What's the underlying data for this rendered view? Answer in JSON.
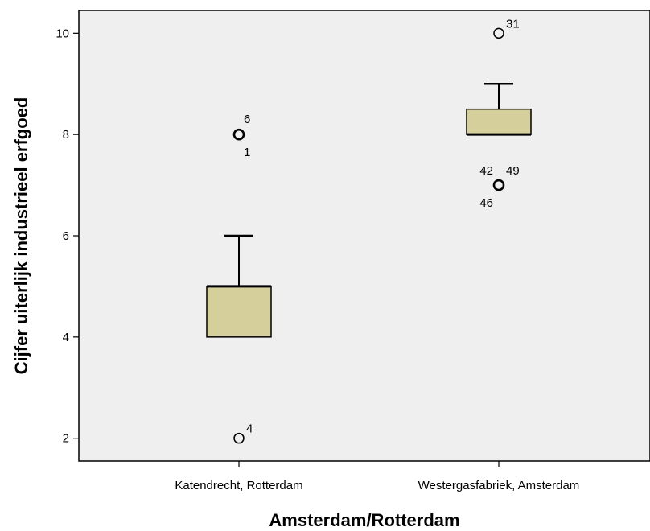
{
  "chart_data": {
    "type": "boxplot",
    "xlabel": "Amsterdam/Rotterdam",
    "ylabel": "Cijfer uiterlijk industrieel erfgoed",
    "ylim": [
      1.55,
      10.45
    ],
    "yticks": [
      2,
      4,
      6,
      8,
      10
    ],
    "grid": false,
    "colors": {
      "plot_background": "#efefef",
      "box_fill": "#d5cf9b",
      "stroke": "#000000"
    },
    "categories": [
      "Katendrecht, Rotterdam",
      "Westergasfabriek, Amsterdam"
    ],
    "boxes": [
      {
        "category": "Katendrecht, Rotterdam",
        "q1": 4,
        "median": 5,
        "q3": 5,
        "whisker_low": 4,
        "whisker_high": 6,
        "outliers": [
          {
            "value": 8,
            "labels": [
              "6",
              "1"
            ]
          },
          {
            "value": 2,
            "labels": [
              "4"
            ]
          }
        ]
      },
      {
        "category": "Westergasfabriek, Amsterdam",
        "q1": 8,
        "median": 8,
        "q3": 8.5,
        "whisker_low": 8,
        "whisker_high": 9,
        "outliers": [
          {
            "value": 10,
            "labels": [
              "31"
            ]
          },
          {
            "value": 7,
            "labels": [
              "42",
              "49",
              "46"
            ]
          }
        ]
      }
    ]
  }
}
